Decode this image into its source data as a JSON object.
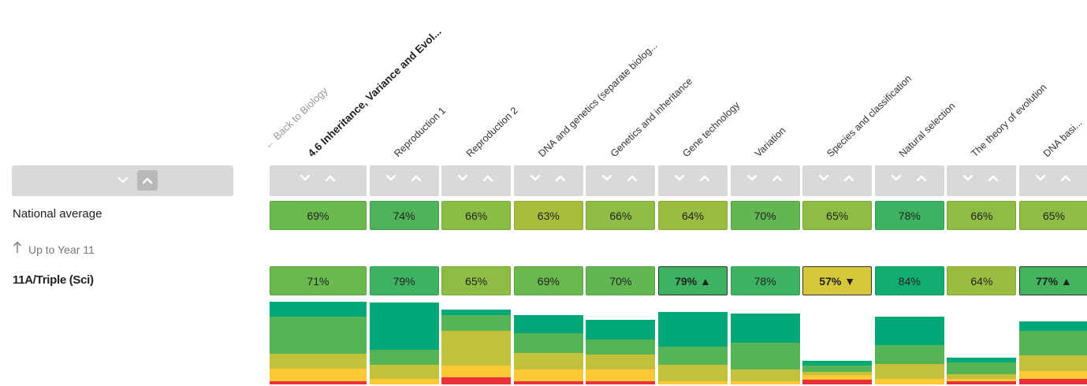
{
  "nav": {
    "back_label": "← Back to Biology",
    "focus_title": "4.6 Inheritance, Variance and Evol..."
  },
  "rows": {
    "national_label": "National average",
    "up_label": "Up to Year 11",
    "group_label": "11A/Triple (Sci)"
  },
  "icons": {
    "sort_down": "chevron-down-icon",
    "sort_up": "chevron-up-icon",
    "up_arrow": "arrow-up-icon",
    "trend_up": "triangle-up-icon",
    "trend_down": "triangle-down-icon"
  },
  "colors": {
    "grade_top": "#00a878",
    "grade_high": "#1aa86a",
    "grade_good": "#55b556",
    "grade_mid": "#a3bd3f",
    "grade_low": "#c3c03c",
    "grade_amber": "#ffc836",
    "grade_orange": "#f79b2e",
    "grade_red": "#e8313a",
    "highlight_down": "#d4c734"
  },
  "columns": [
    {
      "label": "4.6 Inheritance, Variance and Evol...",
      "national": "69%",
      "national_color": "#6ab94e",
      "group": "71%",
      "group_color": "#6ab94e",
      "trend": "",
      "highlight": false,
      "dist": [
        0.18,
        0.45,
        0.18,
        0.15,
        0.04
      ]
    },
    {
      "label": "Reproduction 1",
      "national": "74%",
      "national_color": "#4fb35a",
      "group": "79%",
      "group_color": "#3db361",
      "trend": "",
      "highlight": false,
      "dist": [
        0.58,
        0.18,
        0.17,
        0.07,
        0.0
      ]
    },
    {
      "label": "Reproduction 2",
      "national": "66%",
      "national_color": "#8bbd44",
      "group": "65%",
      "group_color": "#8dbd44",
      "trend": "",
      "highlight": false,
      "dist": [
        0.07,
        0.19,
        0.42,
        0.14,
        0.09
      ]
    },
    {
      "label": "DNA and genetics (separate biolog...",
      "national": "63%",
      "national_color": "#a7bd3d",
      "group": "69%",
      "group_color": "#6ab94e",
      "trend": "",
      "highlight": false,
      "dist": [
        0.22,
        0.24,
        0.2,
        0.14,
        0.04
      ]
    },
    {
      "label": "Genetics and inheritance",
      "national": "66%",
      "national_color": "#8dbd44",
      "group": "70%",
      "group_color": "#62b752",
      "trend": "",
      "highlight": false,
      "dist": [
        0.24,
        0.18,
        0.18,
        0.14,
        0.04
      ]
    },
    {
      "label": "Gene technology",
      "national": "64%",
      "national_color": "#9abd40",
      "group": "79% ▲",
      "group_color": "#3db361",
      "trend": "up",
      "highlight": true,
      "dist": [
        0.42,
        0.22,
        0.2,
        0.04,
        0.0
      ]
    },
    {
      "label": "Variation",
      "national": "70%",
      "national_color": "#62b752",
      "group": "78%",
      "group_color": "#3db361",
      "trend": "",
      "highlight": false,
      "dist": [
        0.36,
        0.33,
        0.14,
        0.04,
        0.0
      ]
    },
    {
      "label": "Species and classification",
      "national": "65%",
      "national_color": "#8dbd44",
      "group": "57% ▼",
      "group_color": "#d6c63a",
      "trend": "down",
      "highlight": true,
      "dist": [
        0.06,
        0.08,
        0.04,
        0.06,
        0.06
      ]
    },
    {
      "label": "Natural selection",
      "national": "78%",
      "national_color": "#3db361",
      "group": "84%",
      "group_color": "#12ad6e",
      "trend": "",
      "highlight": false,
      "dist": [
        0.35,
        0.23,
        0.18,
        0.07,
        0.0
      ]
    },
    {
      "label": "The theory of evolution",
      "national": "66%",
      "national_color": "#8dbd44",
      "group": "64%",
      "group_color": "#9abd40",
      "trend": "",
      "highlight": false,
      "dist": [
        0.06,
        0.14,
        0.06,
        0.03,
        0.04
      ]
    },
    {
      "label": "DNA basi...",
      "national": "65%",
      "national_color": "#8dbd44",
      "group": "77% ▲",
      "group_color": "#43b35e",
      "trend": "up",
      "highlight": true,
      "dist": [
        0.12,
        0.3,
        0.19,
        0.1,
        0.07
      ]
    }
  ]
}
